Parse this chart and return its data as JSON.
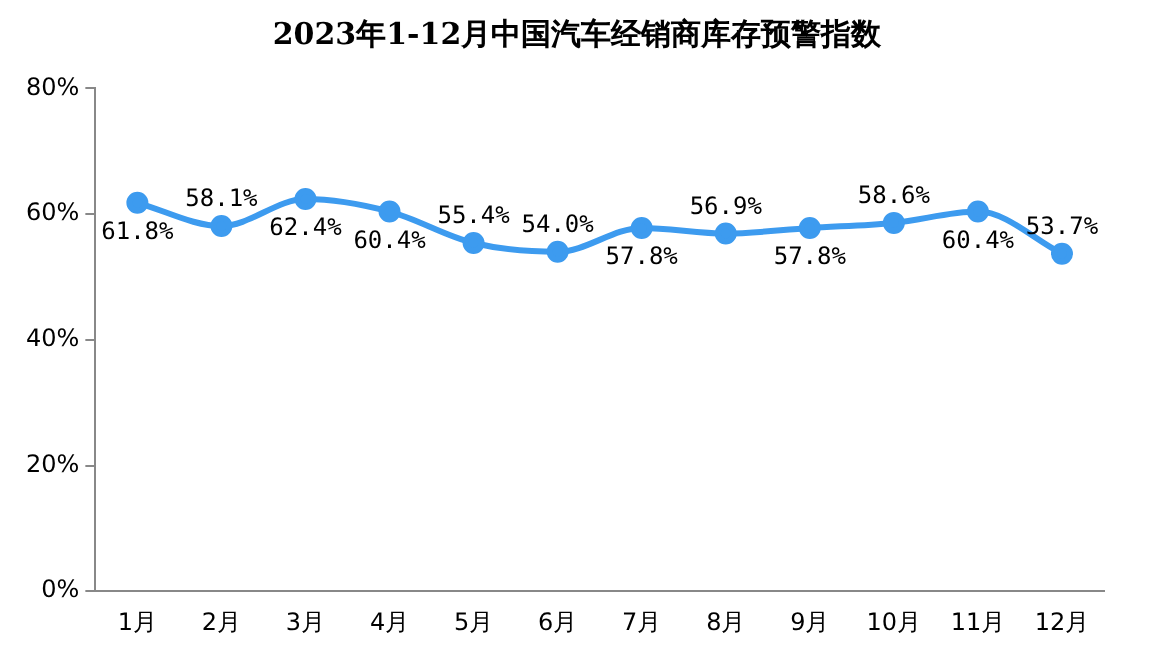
{
  "chart_data": {
    "type": "line",
    "title": "2023年1-12月中国汽车经销商库存预警指数",
    "categories": [
      "1月",
      "2月",
      "3月",
      "4月",
      "5月",
      "6月",
      "7月",
      "8月",
      "9月",
      "10月",
      "11月",
      "12月"
    ],
    "series": [
      {
        "color": "#3d9bef",
        "values": [
          61.8,
          58.1,
          62.4,
          60.4,
          55.4,
          54.0,
          57.8,
          56.9,
          57.8,
          58.6,
          60.4,
          53.7
        ],
        "value_labels": [
          "61.8%",
          "58.1%",
          "62.4%",
          "60.4%",
          "55.4%",
          "54.0%",
          "57.8%",
          "56.9%",
          "57.8%",
          "58.6%",
          "60.4%",
          "53.7%"
        ]
      }
    ],
    "ylim": [
      0,
      80
    ],
    "yticks": [
      {
        "value": 0,
        "label": "0%"
      },
      {
        "value": 20,
        "label": "20%"
      },
      {
        "value": 40,
        "label": "40%"
      },
      {
        "value": 60,
        "label": "60%"
      },
      {
        "value": 80,
        "label": "80%"
      }
    ],
    "grid": false,
    "legend": false,
    "marker": "circle",
    "line_style": "solid"
  }
}
